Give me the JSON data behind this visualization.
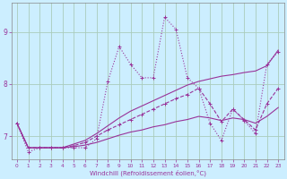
{
  "xlabel": "Windchill (Refroidissement éolien,°C)",
  "bg_color": "#cceeff",
  "grid_color": "#aaccbb",
  "line_color": "#993399",
  "x_values": [
    0,
    1,
    2,
    3,
    4,
    5,
    6,
    7,
    8,
    9,
    10,
    11,
    12,
    13,
    14,
    15,
    16,
    17,
    18,
    19,
    20,
    21,
    22,
    23
  ],
  "s1": [
    7.25,
    6.7,
    6.78,
    6.78,
    6.78,
    6.78,
    6.78,
    6.95,
    8.05,
    8.72,
    8.38,
    8.12,
    8.12,
    9.28,
    9.05,
    8.12,
    7.92,
    7.25,
    6.92,
    7.52,
    7.3,
    7.05,
    8.38,
    8.62
  ],
  "s2": [
    7.25,
    6.78,
    6.78,
    6.78,
    6.78,
    6.85,
    6.92,
    7.05,
    7.2,
    7.35,
    7.48,
    7.58,
    7.68,
    7.78,
    7.88,
    7.98,
    8.05,
    8.1,
    8.15,
    8.18,
    8.22,
    8.25,
    8.35,
    8.65
  ],
  "s3": [
    7.25,
    6.78,
    6.78,
    6.78,
    6.78,
    6.82,
    6.88,
    7.0,
    7.12,
    7.22,
    7.32,
    7.42,
    7.52,
    7.62,
    7.72,
    7.8,
    7.92,
    7.62,
    7.28,
    7.52,
    7.32,
    7.12,
    7.62,
    7.92
  ],
  "s4": [
    7.25,
    6.78,
    6.78,
    6.78,
    6.78,
    6.8,
    6.83,
    6.88,
    6.95,
    7.02,
    7.08,
    7.12,
    7.18,
    7.22,
    7.28,
    7.32,
    7.38,
    7.35,
    7.3,
    7.35,
    7.32,
    7.25,
    7.38,
    7.55
  ],
  "xlim": [
    -0.5,
    23.5
  ],
  "ylim": [
    6.55,
    9.55
  ],
  "yticks": [
    7,
    8,
    9
  ],
  "xticks": [
    0,
    1,
    2,
    3,
    4,
    5,
    6,
    7,
    8,
    9,
    10,
    11,
    12,
    13,
    14,
    15,
    16,
    17,
    18,
    19,
    20,
    21,
    22,
    23
  ]
}
